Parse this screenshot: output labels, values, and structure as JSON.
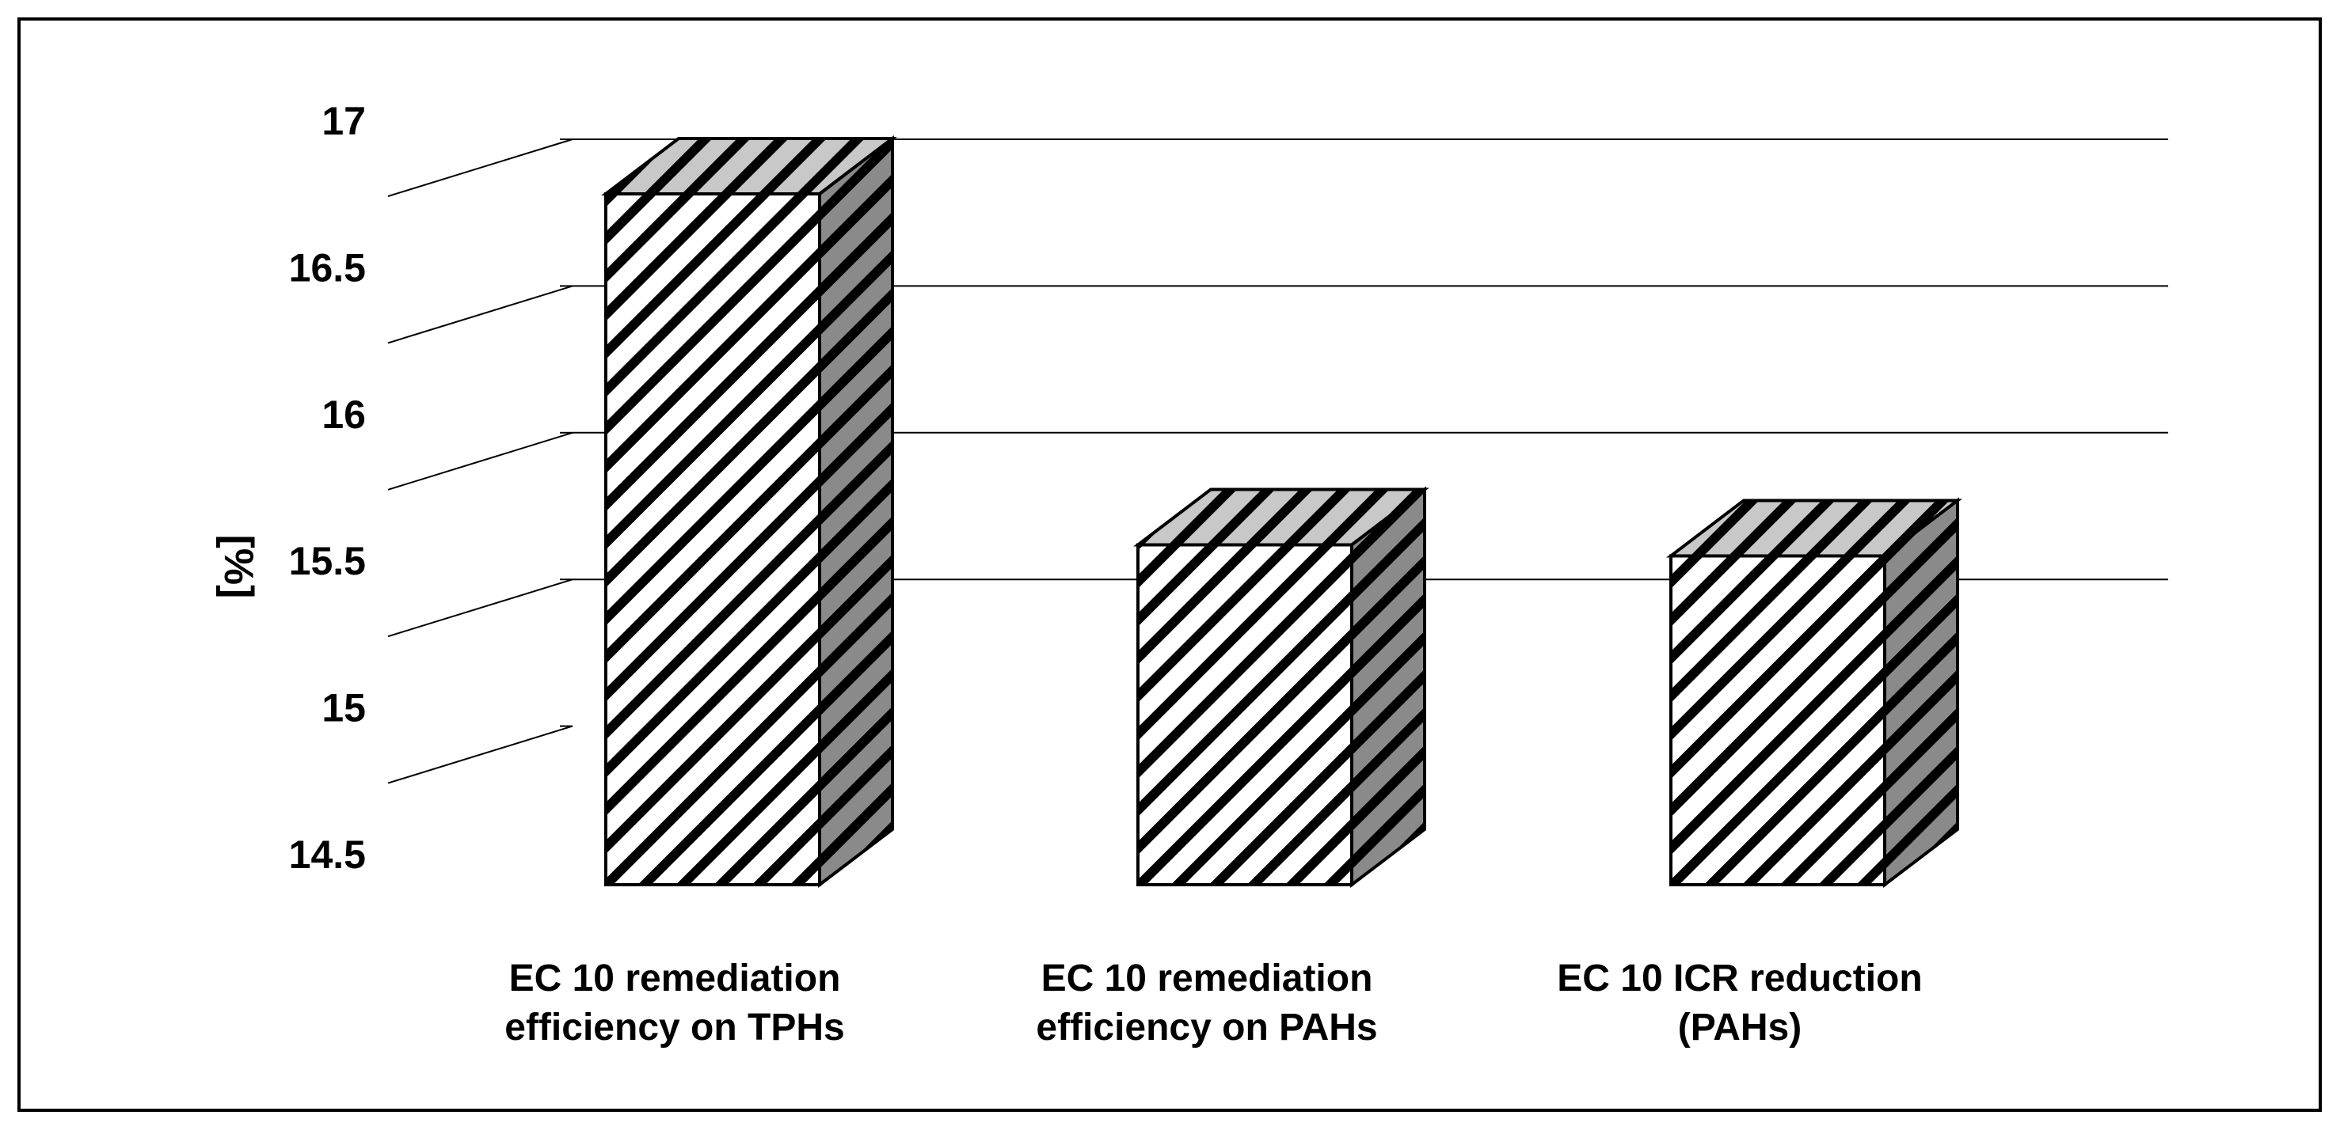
{
  "chart_data": {
    "type": "bar",
    "style": "3d-column-hatched",
    "ylabel": "[%]",
    "xlabel": "",
    "ylim": [
      14.5,
      17
    ],
    "yticks": [
      "17",
      "16.5",
      "16",
      "15.5",
      "15",
      "14.5"
    ],
    "gridlines": [
      15.5,
      16,
      16.5,
      17
    ],
    "grid": true,
    "legend": "none",
    "categories": [
      [
        "EC 10 remediation",
        "efficiency on TPHs"
      ],
      [
        "EC 10 remediation",
        "efficiency on PAHs"
      ],
      [
        "EC 10 ICR reduction",
        "(PAHs)"
      ]
    ],
    "values": [
      17.0,
      15.73,
      15.69
    ],
    "colors": {
      "front": "#ffffff",
      "hatch": "#000000",
      "top": "#c8c8c8",
      "side": "#8a8a8a"
    }
  }
}
